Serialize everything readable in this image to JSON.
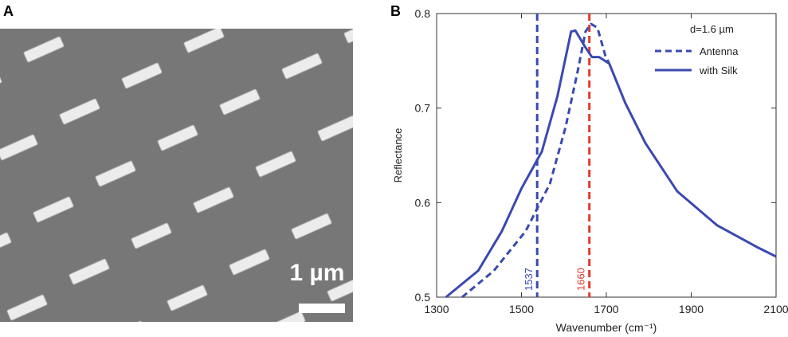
{
  "panel_a": {
    "label": "A",
    "scale_bar": "1 µm"
  },
  "chart_data": {
    "type": "line",
    "panel_label": "B",
    "xlabel": "Wavenumber (cm⁻¹)",
    "ylabel": "Reflectance",
    "xlim": [
      1300,
      2100
    ],
    "ylim": [
      0.5,
      0.8
    ],
    "xticks": [
      1300,
      1500,
      1700,
      1900,
      2100
    ],
    "yticks": [
      0.5,
      0.6,
      0.7,
      0.8
    ],
    "legend_title": "d=1.6 µm",
    "legend": "upper right",
    "series": [
      {
        "name": "Antenna",
        "color": "#3a49b0",
        "dash": true,
        "x": [
          1360,
          1435,
          1510,
          1567,
          1604,
          1632,
          1651,
          1664,
          1679,
          1698,
          1707
        ],
        "values": [
          0.5,
          0.528,
          0.57,
          0.62,
          0.68,
          0.738,
          0.781,
          0.789,
          0.785,
          0.755,
          0.747
        ]
      },
      {
        "name": "with Silk",
        "color": "#3a49b0",
        "dash": false,
        "x": [
          1322,
          1398,
          1454,
          1500,
          1548,
          1585,
          1617,
          1627,
          1651,
          1666,
          1683,
          1707,
          1745,
          1792,
          1867,
          1961,
          2055,
          2100
        ],
        "values": [
          0.5,
          0.528,
          0.57,
          0.615,
          0.654,
          0.713,
          0.781,
          0.782,
          0.764,
          0.754,
          0.754,
          0.747,
          0.705,
          0.663,
          0.612,
          0.576,
          0.553,
          0.543
        ]
      }
    ],
    "annotations": [
      {
        "value": 1537,
        "color": "#3a49b0"
      },
      {
        "value": 1660,
        "color": "#e03a2c"
      }
    ]
  }
}
